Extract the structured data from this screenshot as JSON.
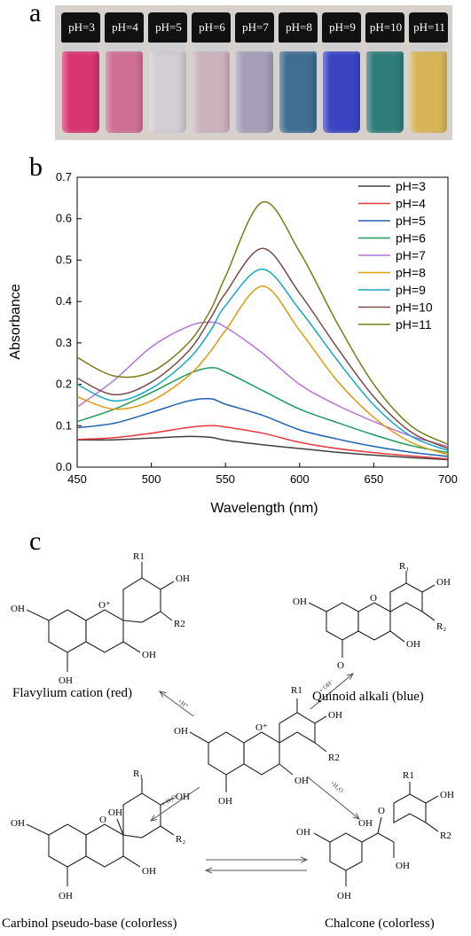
{
  "panels": {
    "a": "a",
    "b": "b",
    "c": "c"
  },
  "vials": [
    {
      "label": "pH=3",
      "color": "#d8356f"
    },
    {
      "label": "pH=4",
      "color": "#cf6f94"
    },
    {
      "label": "pH=5",
      "color": "#d3cdd4"
    },
    {
      "label": "pH=6",
      "color": "#cbb3be"
    },
    {
      "label": "pH=7",
      "color": "#a59eb6"
    },
    {
      "label": "pH=8",
      "color": "#3f6e93"
    },
    {
      "label": "pH=9",
      "color": "#3a44c2"
    },
    {
      "label": "pH=10",
      "color": "#2f7d78"
    },
    {
      "label": "pH=11",
      "color": "#d7b456"
    }
  ],
  "chart_data": {
    "type": "line",
    "xlabel": "Wavelength (nm)",
    "ylabel": "Absorbance",
    "xlim": [
      450,
      700
    ],
    "ylim": [
      0.0,
      0.7
    ],
    "xticks": [
      "450",
      "500",
      "550",
      "600",
      "650",
      "700"
    ],
    "yticks": [
      "0.0",
      "0.1",
      "0.2",
      "0.3",
      "0.4",
      "0.5",
      "0.6",
      "0.7"
    ],
    "grid": false,
    "legend": "top-right",
    "x": [
      450,
      475,
      500,
      525,
      540,
      550,
      575,
      600,
      625,
      650,
      675,
      700
    ],
    "series": [
      {
        "name": "pH=3",
        "color": "#404040",
        "values": [
          0.066,
          0.066,
          0.07,
          0.074,
          0.072,
          0.065,
          0.054,
          0.045,
          0.036,
          0.029,
          0.023,
          0.018
        ]
      },
      {
        "name": "pH=4",
        "color": "#e8373a",
        "values": [
          0.067,
          0.071,
          0.082,
          0.096,
          0.1,
          0.097,
          0.082,
          0.06,
          0.045,
          0.035,
          0.027,
          0.02
        ]
      },
      {
        "name": "pH=5",
        "color": "#1f5fb5",
        "values": [
          0.095,
          0.106,
          0.132,
          0.16,
          0.165,
          0.152,
          0.125,
          0.09,
          0.068,
          0.05,
          0.036,
          0.026
        ]
      },
      {
        "name": "pH=6",
        "color": "#1f9a5c",
        "values": [
          0.11,
          0.14,
          0.18,
          0.225,
          0.24,
          0.23,
          0.185,
          0.14,
          0.108,
          0.078,
          0.052,
          0.035
        ]
      },
      {
        "name": "pH=7",
        "color": "#b774d8",
        "values": [
          0.145,
          0.21,
          0.29,
          0.34,
          0.35,
          0.338,
          0.275,
          0.2,
          0.15,
          0.11,
          0.075,
          0.05
        ]
      },
      {
        "name": "pH=8",
        "color": "#dd9b12",
        "values": [
          0.17,
          0.14,
          0.16,
          0.22,
          0.28,
          0.33,
          0.437,
          0.33,
          0.21,
          0.12,
          0.06,
          0.03
        ]
      },
      {
        "name": "pH=9",
        "color": "#16a7c3",
        "values": [
          0.2,
          0.16,
          0.19,
          0.26,
          0.33,
          0.39,
          0.478,
          0.38,
          0.26,
          0.15,
          0.075,
          0.04
        ]
      },
      {
        "name": "pH=10",
        "color": "#7a4a4a",
        "values": [
          0.215,
          0.175,
          0.205,
          0.28,
          0.36,
          0.42,
          0.528,
          0.42,
          0.29,
          0.17,
          0.085,
          0.045
        ]
      },
      {
        "name": "pH=11",
        "color": "#7a7a1a",
        "values": [
          0.265,
          0.22,
          0.23,
          0.3,
          0.38,
          0.46,
          0.64,
          0.52,
          0.35,
          0.2,
          0.1,
          0.055
        ]
      }
    ]
  },
  "scheme": {
    "captions": {
      "flavylium": "Flavylium cation (red)",
      "quinoid": "Quinoid alkali (blue)",
      "carbinol": "Carbinol pseudo-base (colorless)",
      "chalcone": "Chalcone (colorless)"
    },
    "arrows": {
      "to_flavylium": "+H⁺",
      "to_quinoid": "+ OH⁻",
      "to_carbinol": "+ H₂O",
      "to_chalcone": "+H₂O"
    },
    "labels": {
      "oh": "OH",
      "o": "O",
      "oplus": "O⁺",
      "r1": "R1",
      "r2": "R2",
      "r1s": "R₁",
      "r2s": "R₂"
    }
  }
}
